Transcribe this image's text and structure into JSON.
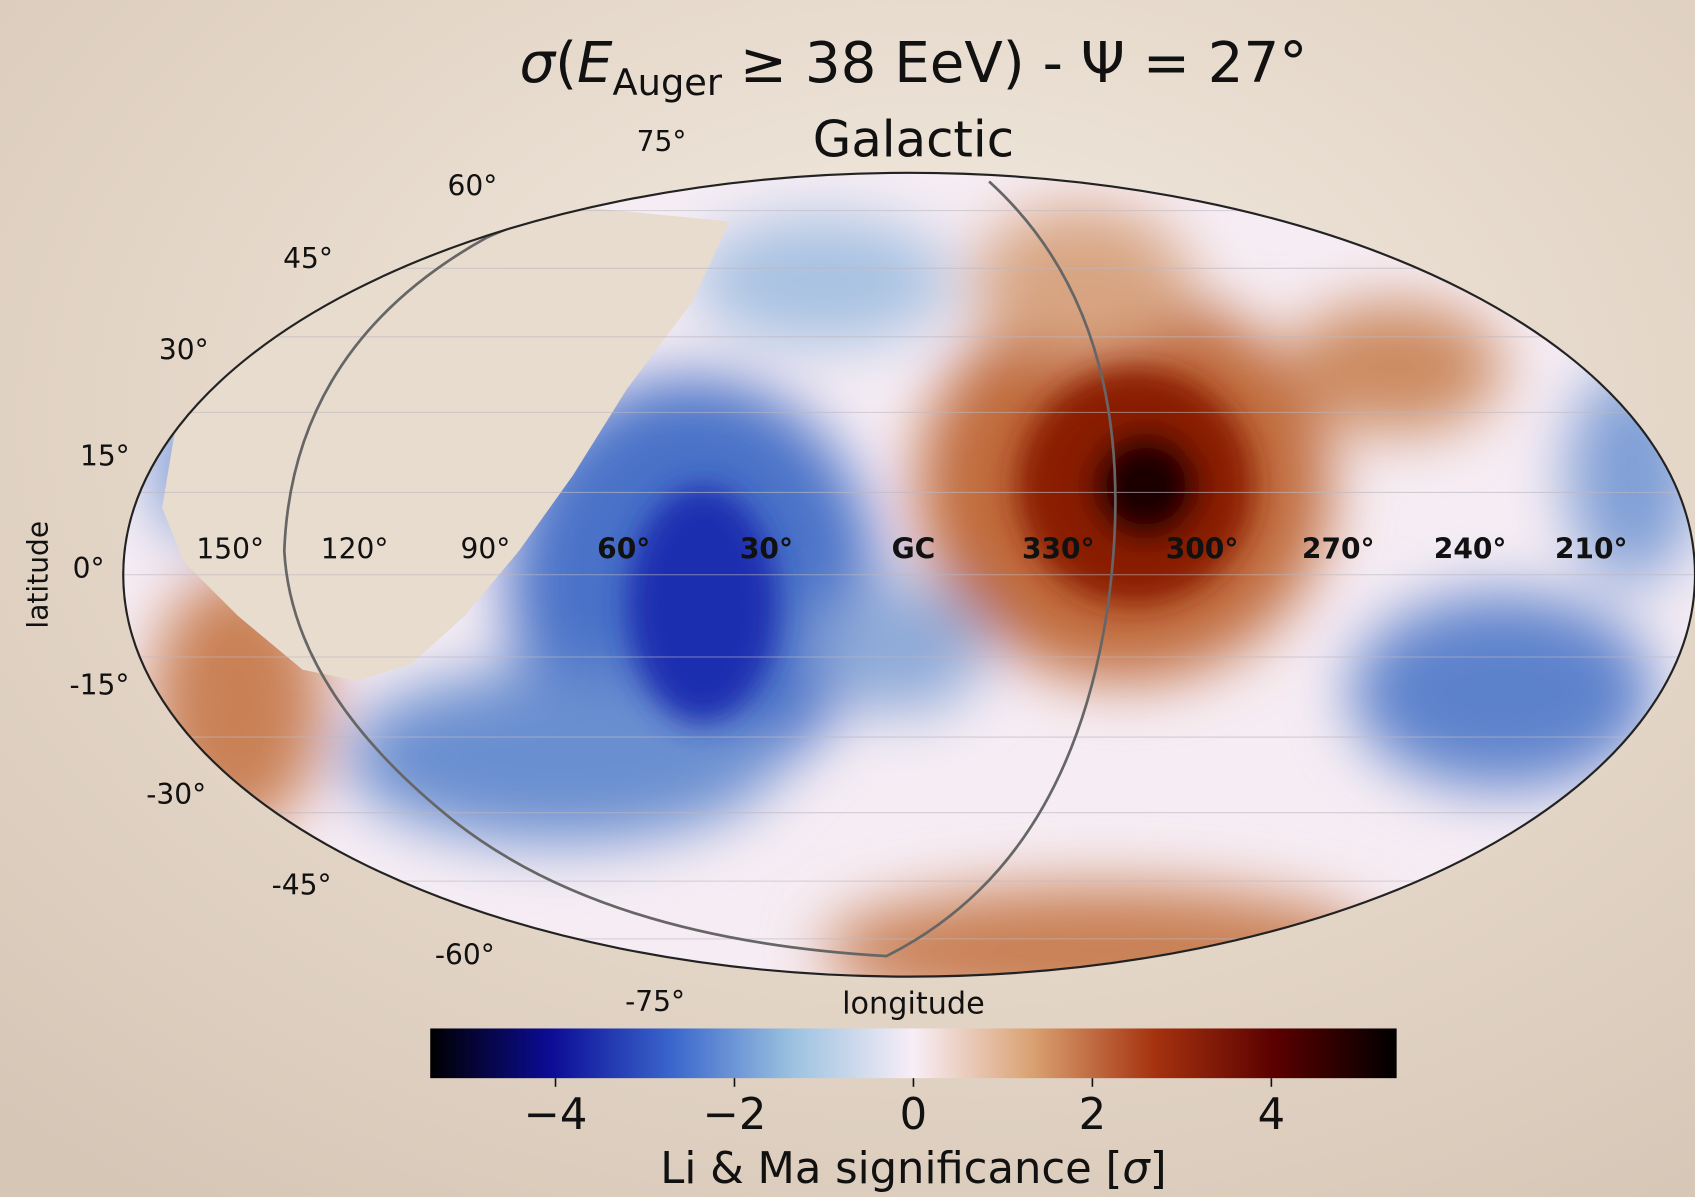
{
  "header": {
    "title_parts": [
      "σ",
      "(",
      "E",
      "Auger",
      " ≥ 38 EeV) - Ψ = 27°"
    ],
    "subtitle": "Galactic"
  },
  "map": {
    "projection": "mollweide",
    "frame": "Galactic",
    "latitude_labels": [
      "75°",
      "60°",
      "45°",
      "30°",
      "15°",
      "0°",
      "-15°",
      "-30°",
      "-45°",
      "-60°",
      "-75°"
    ],
    "longitude_labels": [
      "150°",
      "120°",
      "90°",
      "60°",
      "30°",
      "GC",
      "330°",
      "300°",
      "270°",
      "240°",
      "210°"
    ],
    "x_label": "longitude",
    "y_label": "latitude"
  },
  "colorbar": {
    "lim": [
      -5.4,
      5.4
    ],
    "ticks": [
      {
        "value": -4,
        "label": "−4"
      },
      {
        "value": -2,
        "label": "−2"
      },
      0,
      2,
      4
    ],
    "colormap": [
      "#000000",
      "#0c0c96",
      "#3a66cc",
      "#9cc2e0",
      "#f8eef7",
      "#d9a070",
      "#a5320f",
      "#5a0000",
      "#000000"
    ],
    "label_parts": [
      "Li & Ma significance [",
      "σ",
      "]"
    ]
  }
}
